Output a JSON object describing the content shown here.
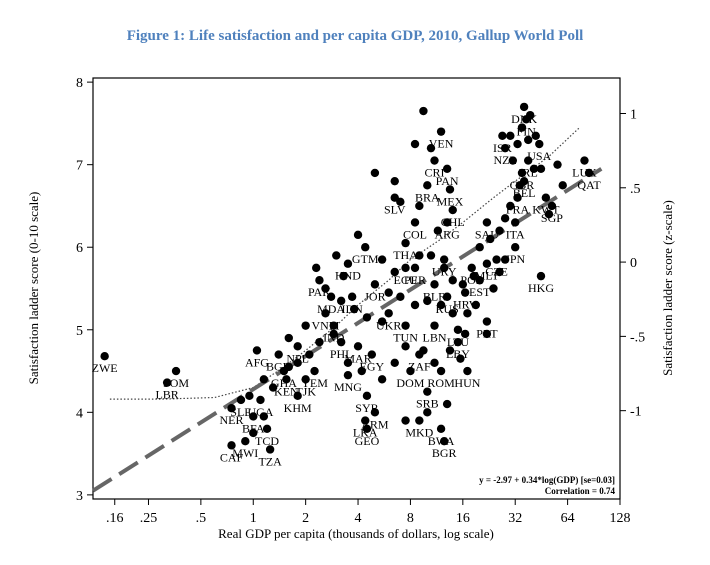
{
  "title": "Figure 1: Life satisfaction and per capita GDP, 2010, Gallup World Poll",
  "chart_data": {
    "type": "scatter",
    "title": "Figure 1: Life satisfaction and per capita GDP, 2010, Gallup World Poll",
    "xlabel": "Real GDP per capita (thousands of dollars, log scale)",
    "ylabel_left": "Satisfaction ladder score (0-10 scale)",
    "ylabel_right": "Satisfaction ladder score (z-scale)",
    "x_scale": "log2",
    "xlim": [
      0.12,
      128
    ],
    "ylim": [
      2.95,
      8.05
    ],
    "x_ticks": [
      {
        "v": 0.16,
        "label": ".16"
      },
      {
        "v": 0.25,
        "label": ".25"
      },
      {
        "v": 0.5,
        "label": ".5"
      },
      {
        "v": 1,
        "label": "1"
      },
      {
        "v": 2,
        "label": "2"
      },
      {
        "v": 4,
        "label": "4"
      },
      {
        "v": 8,
        "label": "8"
      },
      {
        "v": 16,
        "label": "16"
      },
      {
        "v": 32,
        "label": "32"
      },
      {
        "v": 64,
        "label": "64"
      },
      {
        "v": 128,
        "label": "128"
      }
    ],
    "y_ticks_left": [
      {
        "v": 3,
        "label": "3"
      },
      {
        "v": 4,
        "label": "4"
      },
      {
        "v": 5,
        "label": "5"
      },
      {
        "v": 6,
        "label": "6"
      },
      {
        "v": 7,
        "label": "7"
      },
      {
        "v": 8,
        "label": "8"
      }
    ],
    "y_ticks_right": [
      {
        "v": 7.62,
        "label": "1"
      },
      {
        "v": 6.72,
        "label": ".5"
      },
      {
        "v": 5.82,
        "label": "0"
      },
      {
        "v": 4.92,
        "label": "-.5"
      },
      {
        "v": 4.02,
        "label": "-1"
      }
    ],
    "regression_label": "y = -2.97 + 0.34*log(GDP) [se=0.03]",
    "correlation_label": "Correlation = 0.74",
    "fit_line": {
      "x": [
        0.12,
        100
      ],
      "y": [
        3.05,
        6.95
      ]
    },
    "smooth_line": {
      "x": [
        0.15,
        0.3,
        0.6,
        1.0,
        1.5,
        2,
        3,
        4,
        6,
        8,
        12,
        16,
        24,
        32,
        50,
        75
      ],
      "y": [
        4.16,
        4.16,
        4.18,
        4.3,
        4.55,
        4.75,
        5.05,
        5.3,
        5.6,
        5.85,
        6.1,
        6.3,
        6.6,
        6.8,
        7.1,
        7.45
      ]
    },
    "points": [
      {
        "label": "ZWE",
        "x": 0.14,
        "y": 4.68
      },
      {
        "label": "SOM",
        "x": 0.36,
        "y": 4.5
      },
      {
        "label": "LBR",
        "x": 0.32,
        "y": 4.36
      },
      {
        "label": "NER",
        "x": 0.75,
        "y": 4.05
      },
      {
        "label": "CAF",
        "x": 0.75,
        "y": 3.6
      },
      {
        "label": "MWI",
        "x": 0.9,
        "y": 3.65
      },
      {
        "label": "TZA",
        "x": 1.25,
        "y": 3.55
      },
      {
        "label": "BFA",
        "x": 1.0,
        "y": 3.95
      },
      {
        "label": "TCD",
        "x": 1.2,
        "y": 3.8
      },
      {
        "label": "SLE",
        "x": 0.85,
        "y": 4.15
      },
      {
        "label": "UGA",
        "x": 1.1,
        "y": 4.15
      },
      {
        "label": "GHA",
        "x": 1.5,
        "y": 4.5
      },
      {
        "label": "KEN",
        "x": 1.55,
        "y": 4.4
      },
      {
        "label": "KHM",
        "x": 1.8,
        "y": 4.2
      },
      {
        "label": "TJK",
        "x": 2.0,
        "y": 4.4
      },
      {
        "label": "YEM",
        "x": 2.25,
        "y": 4.5
      },
      {
        "label": "BGD",
        "x": 1.4,
        "y": 4.7
      },
      {
        "label": "AFG",
        "x": 1.05,
        "y": 4.75
      },
      {
        "label": "NPL",
        "x": 1.8,
        "y": 4.8
      },
      {
        "label": "IND",
        "x": 2.9,
        "y": 5.05
      },
      {
        "label": "MNG",
        "x": 3.5,
        "y": 4.45
      },
      {
        "label": "MAR",
        "x": 4.0,
        "y": 4.8
      },
      {
        "label": "PHL",
        "x": 3.2,
        "y": 4.85
      },
      {
        "label": "EGY",
        "x": 4.8,
        "y": 4.7
      },
      {
        "label": "SYR",
        "x": 4.5,
        "y": 4.2
      },
      {
        "label": "ARM",
        "x": 5.0,
        "y": 4.0
      },
      {
        "label": "LKA",
        "x": 4.4,
        "y": 3.9
      },
      {
        "label": "GEO",
        "x": 4.5,
        "y": 3.8
      },
      {
        "label": "MKD",
        "x": 9.0,
        "y": 3.9
      },
      {
        "label": "BWA",
        "x": 12.0,
        "y": 3.8
      },
      {
        "label": "BGR",
        "x": 12.5,
        "y": 3.65
      },
      {
        "label": "SRB",
        "x": 10.0,
        "y": 4.25
      },
      {
        "label": "DOM",
        "x": 8.0,
        "y": 4.5
      },
      {
        "label": "ROM",
        "x": 12.0,
        "y": 4.5
      },
      {
        "label": "HUN",
        "x": 17.0,
        "y": 4.5
      },
      {
        "label": "ZAF",
        "x": 9.0,
        "y": 4.7
      },
      {
        "label": "LBY",
        "x": 15.0,
        "y": 4.85
      },
      {
        "label": "LTU",
        "x": 15.0,
        "y": 5.0
      },
      {
        "label": "LBN",
        "x": 11.0,
        "y": 5.05
      },
      {
        "label": "TUN",
        "x": 7.5,
        "y": 5.05
      },
      {
        "label": "PRT",
        "x": 22.0,
        "y": 5.1
      },
      {
        "label": "UKR",
        "x": 6.0,
        "y": 5.2
      },
      {
        "label": "VNM",
        "x": 2.6,
        "y": 5.2
      },
      {
        "label": "BLR",
        "x": 11.0,
        "y": 5.55
      },
      {
        "label": "RUS",
        "x": 13.0,
        "y": 5.4
      },
      {
        "label": "MDA",
        "x": 2.8,
        "y": 5.4
      },
      {
        "label": "IDN",
        "x": 3.7,
        "y": 5.4
      },
      {
        "label": "PAK",
        "x": 2.4,
        "y": 5.6
      },
      {
        "label": "HND",
        "x": 3.5,
        "y": 5.8
      },
      {
        "label": "JOR",
        "x": 5.0,
        "y": 5.55
      },
      {
        "label": "ECU",
        "x": 7.5,
        "y": 5.75
      },
      {
        "label": "PER",
        "x": 8.5,
        "y": 5.75
      },
      {
        "label": "THA",
        "x": 7.5,
        "y": 6.05
      },
      {
        "label": "GTM",
        "x": 4.4,
        "y": 6.0
      },
      {
        "label": "URY",
        "x": 12.5,
        "y": 5.85
      },
      {
        "label": "POL",
        "x": 18.0,
        "y": 5.75
      },
      {
        "label": "HRV",
        "x": 16.5,
        "y": 5.45
      },
      {
        "label": "CHL",
        "x": 14.0,
        "y": 6.45
      },
      {
        "label": "ARG",
        "x": 13.0,
        "y": 6.3
      },
      {
        "label": "COL",
        "x": 8.5,
        "y": 6.3
      },
      {
        "label": "SLV",
        "x": 6.5,
        "y": 6.6
      },
      {
        "label": "BRA",
        "x": 10.0,
        "y": 6.75
      },
      {
        "label": "MEX",
        "x": 13.5,
        "y": 6.7
      },
      {
        "label": "CRI",
        "x": 11.0,
        "y": 7.05
      },
      {
        "label": "PAN",
        "x": 13.0,
        "y": 6.95
      },
      {
        "label": "VEN",
        "x": 12.0,
        "y": 7.4
      },
      {
        "label": "SAU",
        "x": 22.0,
        "y": 6.3
      },
      {
        "label": "KWT",
        "x": 48.0,
        "y": 6.6
      },
      {
        "label": "SGP",
        "x": 52.0,
        "y": 6.5
      },
      {
        "label": "HKG",
        "x": 45.0,
        "y": 5.65
      },
      {
        "label": "MLT",
        "x": 22.0,
        "y": 5.8
      },
      {
        "label": "CZE",
        "x": 25.0,
        "y": 5.85
      },
      {
        "label": "ISR",
        "x": 27.0,
        "y": 7.35
      },
      {
        "label": "NZL",
        "x": 28.0,
        "y": 7.2
      },
      {
        "label": "DNK",
        "x": 36.0,
        "y": 7.7
      },
      {
        "label": "FIN",
        "x": 37.0,
        "y": 7.55
      },
      {
        "label": "USA",
        "x": 44.0,
        "y": 7.25
      },
      {
        "label": "IRL",
        "x": 38.0,
        "y": 7.05
      },
      {
        "label": "GBR",
        "x": 35.0,
        "y": 6.9
      },
      {
        "label": "BEL",
        "x": 36.0,
        "y": 6.8
      },
      {
        "label": "FRA",
        "x": 33.0,
        "y": 6.6
      },
      {
        "label": "ITA",
        "x": 32.0,
        "y": 6.3
      },
      {
        "label": "JPN",
        "x": 32.0,
        "y": 6.0
      },
      {
        "label": "EST",
        "x": 20.0,
        "y": 5.6
      },
      {
        "label": "LUX",
        "x": 80.0,
        "y": 7.05
      },
      {
        "label": "QAT",
        "x": 85.0,
        "y": 6.9
      }
    ],
    "extra_points": [
      [
        9.5,
        7.65
      ],
      [
        8.5,
        7.25
      ],
      [
        10.5,
        7.2
      ],
      [
        6.5,
        6.8
      ],
      [
        5.0,
        6.9
      ],
      [
        7.0,
        6.55
      ],
      [
        9.0,
        6.5
      ],
      [
        11.5,
        6.2
      ],
      [
        4.0,
        6.15
      ],
      [
        3.0,
        5.9
      ],
      [
        2.3,
        5.75
      ],
      [
        5.5,
        5.85
      ],
      [
        6.5,
        5.7
      ],
      [
        9.0,
        5.9
      ],
      [
        10.5,
        5.9
      ],
      [
        12.5,
        5.75
      ],
      [
        14.0,
        5.6
      ],
      [
        16.0,
        5.55
      ],
      [
        18.5,
        5.65
      ],
      [
        20.0,
        6.0
      ],
      [
        23.0,
        6.1
      ],
      [
        26.0,
        6.2
      ],
      [
        28.0,
        6.35
      ],
      [
        30.0,
        6.5
      ],
      [
        34.0,
        6.75
      ],
      [
        31.0,
        7.05
      ],
      [
        33.0,
        7.25
      ],
      [
        38.0,
        7.3
      ],
      [
        42.0,
        7.35
      ],
      [
        35.0,
        7.45
      ],
      [
        39.0,
        7.6
      ],
      [
        30.0,
        7.35
      ],
      [
        41.0,
        6.95
      ],
      [
        45.0,
        6.95
      ],
      [
        56.0,
        7.0
      ],
      [
        60.0,
        6.75
      ],
      [
        50.0,
        6.4
      ],
      [
        28.0,
        5.85
      ],
      [
        26.0,
        5.7
      ],
      [
        24.0,
        5.5
      ],
      [
        19.0,
        5.3
      ],
      [
        17.0,
        5.2
      ],
      [
        14.0,
        5.2
      ],
      [
        12.0,
        5.3
      ],
      [
        10.0,
        5.35
      ],
      [
        8.5,
        5.3
      ],
      [
        7.0,
        5.4
      ],
      [
        6.0,
        5.45
      ],
      [
        5.5,
        5.1
      ],
      [
        4.5,
        5.15
      ],
      [
        3.8,
        5.25
      ],
      [
        3.2,
        5.35
      ],
      [
        2.9,
        4.95
      ],
      [
        2.4,
        4.85
      ],
      [
        2.1,
        4.7
      ],
      [
        1.8,
        4.6
      ],
      [
        1.6,
        4.55
      ],
      [
        1.3,
        4.3
      ],
      [
        1.15,
        4.4
      ],
      [
        0.95,
        4.2
      ],
      [
        1.0,
        3.75
      ],
      [
        1.15,
        3.95
      ],
      [
        3.5,
        4.6
      ],
      [
        4.2,
        4.5
      ],
      [
        5.5,
        4.4
      ],
      [
        6.5,
        4.6
      ],
      [
        7.5,
        4.8
      ],
      [
        9.5,
        4.75
      ],
      [
        11.0,
        4.6
      ],
      [
        13.5,
        4.75
      ],
      [
        15.5,
        4.65
      ],
      [
        16.5,
        4.95
      ],
      [
        13.0,
        4.1
      ],
      [
        10.0,
        4.0
      ],
      [
        7.5,
        3.9
      ],
      [
        22.0,
        4.95
      ],
      [
        2.0,
        5.05
      ],
      [
        1.6,
        4.9
      ],
      [
        2.6,
        5.5
      ],
      [
        3.3,
        5.65
      ]
    ]
  }
}
